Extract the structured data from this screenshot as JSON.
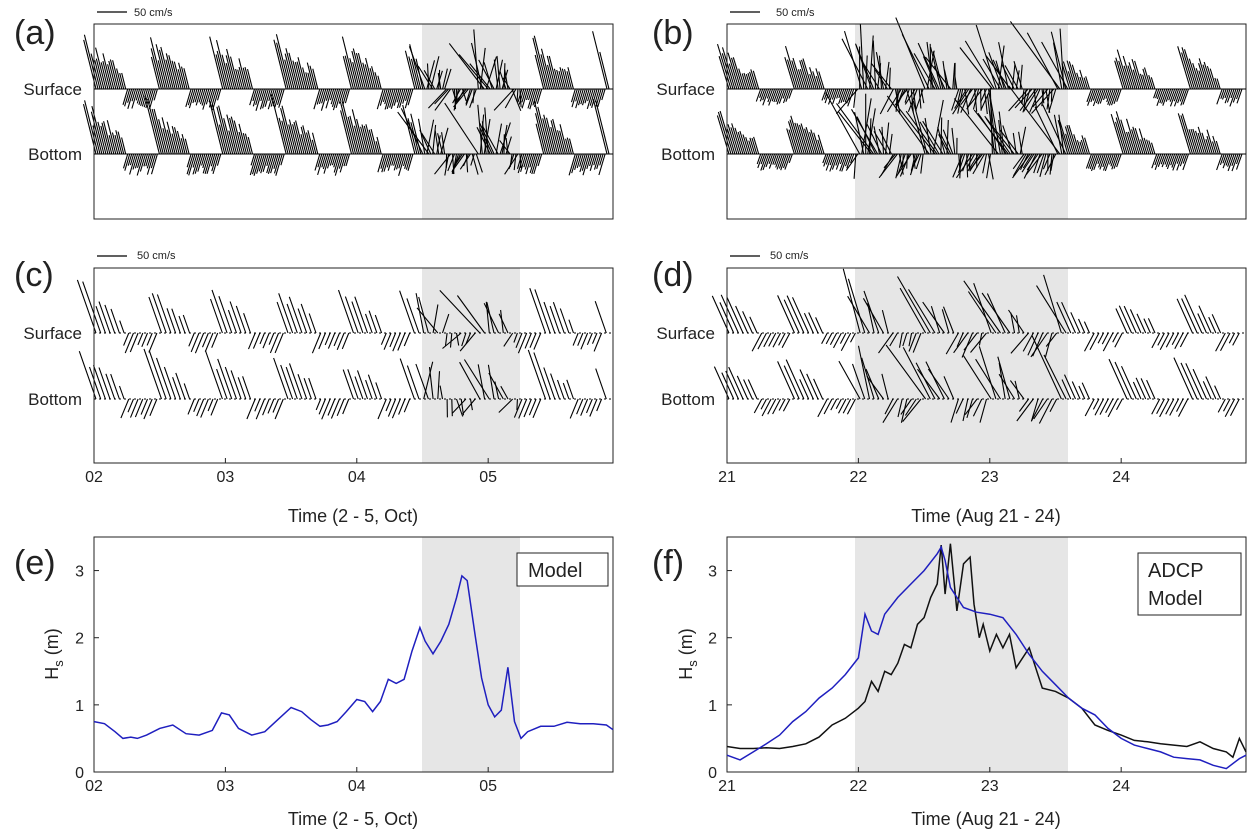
{
  "labels": {
    "surface": "Surface",
    "bottom": "Bottom",
    "scale": "50 cm/s",
    "xlabel_oct": "Time (2 - 5, Oct)",
    "xlabel_aug": "Time (Aug 21 - 24)",
    "ylabel_hs": "H",
    "ylabel_hs_sub": "s",
    "ylabel_unit": " (m)"
  },
  "panels": [
    "(a)",
    "(b)",
    "(c)",
    "(d)",
    "(e)",
    "(f)"
  ],
  "colors": {
    "model": "#1f1fbf",
    "adcp": "#111111",
    "shade": "#e6e6e6",
    "axis": "#222222"
  },
  "chart_data": [
    {
      "type": "stick-vector",
      "panel": "(a)",
      "source": "observed",
      "x_ticks": [
        "02",
        "03",
        "04",
        "05"
      ],
      "x_range": [
        2.0,
        5.95
      ],
      "shaded": [
        4.5,
        5.25
      ],
      "levels": [
        "Surface",
        "Bottom"
      ],
      "scale_label": "50 cm/s"
    },
    {
      "type": "stick-vector",
      "panel": "(b)",
      "source": "observed",
      "x_ticks": [
        "21",
        "22",
        "23",
        "24"
      ],
      "x_range": [
        21.0,
        24.95
      ],
      "shaded": [
        21.98,
        23.6
      ],
      "levels": [
        "Surface",
        "Bottom"
      ],
      "scale_label": "50 cm/s"
    },
    {
      "type": "stick-vector",
      "panel": "(c)",
      "source": "model",
      "x_ticks": [
        "02",
        "03",
        "04",
        "05"
      ],
      "x_range": [
        2.0,
        5.95
      ],
      "shaded": [
        4.5,
        5.25
      ],
      "levels": [
        "Surface",
        "Bottom"
      ],
      "scale_label": "50 cm/s",
      "xlabel": "Time (2 - 5, Oct)"
    },
    {
      "type": "stick-vector",
      "panel": "(d)",
      "source": "model",
      "x_ticks": [
        "21",
        "22",
        "23",
        "24"
      ],
      "x_range": [
        21.0,
        24.95
      ],
      "shaded": [
        21.98,
        23.6
      ],
      "levels": [
        "Surface",
        "Bottom"
      ],
      "scale_label": "50 cm/s",
      "xlabel": "Time (Aug 21 - 24)"
    },
    {
      "type": "line",
      "panel": "(e)",
      "xlabel": "Time (2 - 5, Oct)",
      "ylabel": "Hs (m)",
      "x_ticks": [
        "02",
        "03",
        "04",
        "05"
      ],
      "y_ticks": [
        0,
        1,
        2,
        3
      ],
      "xlim": [
        2.0,
        5.95
      ],
      "ylim": [
        0,
        3.5
      ],
      "shaded": [
        4.5,
        5.25
      ],
      "legend": "top-right",
      "series": [
        {
          "name": "Model",
          "x": [
            2.0,
            2.08,
            2.16,
            2.22,
            2.28,
            2.33,
            2.4,
            2.5,
            2.6,
            2.7,
            2.8,
            2.9,
            2.97,
            3.03,
            3.1,
            3.2,
            3.3,
            3.4,
            3.5,
            3.58,
            3.65,
            3.72,
            3.78,
            3.85,
            3.92,
            4.0,
            4.06,
            4.12,
            4.18,
            4.24,
            4.3,
            4.36,
            4.42,
            4.48,
            4.52,
            4.58,
            4.64,
            4.7,
            4.76,
            4.8,
            4.84,
            4.9,
            4.95,
            5.0,
            5.05,
            5.1,
            5.15,
            5.2,
            5.25,
            5.3,
            5.4,
            5.5,
            5.6,
            5.7,
            5.8,
            5.9,
            5.95
          ],
          "y": [
            0.75,
            0.72,
            0.6,
            0.5,
            0.52,
            0.5,
            0.55,
            0.65,
            0.7,
            0.57,
            0.55,
            0.62,
            0.88,
            0.85,
            0.65,
            0.55,
            0.6,
            0.78,
            0.96,
            0.9,
            0.78,
            0.68,
            0.7,
            0.75,
            0.9,
            1.08,
            1.05,
            0.9,
            1.05,
            1.38,
            1.32,
            1.38,
            1.8,
            2.15,
            1.95,
            1.76,
            1.95,
            2.2,
            2.6,
            2.92,
            2.85,
            2.05,
            1.4,
            1.0,
            0.82,
            0.92,
            1.56,
            0.75,
            0.5,
            0.6,
            0.68,
            0.68,
            0.74,
            0.72,
            0.72,
            0.7,
            0.63
          ]
        }
      ]
    },
    {
      "type": "line",
      "panel": "(f)",
      "xlabel": "Time (Aug 21 - 24)",
      "ylabel": "Hs (m)",
      "x_ticks": [
        "21",
        "22",
        "23",
        "24"
      ],
      "y_ticks": [
        0,
        1,
        2,
        3
      ],
      "xlim": [
        21.0,
        24.95
      ],
      "ylim": [
        0,
        3.5
      ],
      "shaded": [
        21.98,
        23.6
      ],
      "legend": "top-right",
      "series": [
        {
          "name": "ADCP",
          "x": [
            21.0,
            21.1,
            21.2,
            21.3,
            21.4,
            21.5,
            21.6,
            21.7,
            21.8,
            21.9,
            22.0,
            22.05,
            22.1,
            22.15,
            22.2,
            22.25,
            22.3,
            22.35,
            22.4,
            22.45,
            22.5,
            22.55,
            22.6,
            22.63,
            22.66,
            22.7,
            22.75,
            22.8,
            22.85,
            22.88,
            22.92,
            22.95,
            23.0,
            23.05,
            23.1,
            23.15,
            23.2,
            23.3,
            23.4,
            23.5,
            23.6,
            23.7,
            23.8,
            23.9,
            24.0,
            24.1,
            24.2,
            24.3,
            24.4,
            24.5,
            24.6,
            24.7,
            24.8,
            24.85,
            24.9,
            24.95
          ],
          "y": [
            0.38,
            0.35,
            0.35,
            0.36,
            0.35,
            0.38,
            0.42,
            0.52,
            0.7,
            0.8,
            0.95,
            1.05,
            1.35,
            1.2,
            1.5,
            1.45,
            1.62,
            1.9,
            1.85,
            2.2,
            2.3,
            2.6,
            2.8,
            3.38,
            2.65,
            3.4,
            2.4,
            3.1,
            3.2,
            2.5,
            2.0,
            2.2,
            1.8,
            2.05,
            1.85,
            2.05,
            1.55,
            1.85,
            1.25,
            1.2,
            1.1,
            0.95,
            0.7,
            0.62,
            0.55,
            0.47,
            0.45,
            0.42,
            0.4,
            0.38,
            0.45,
            0.35,
            0.3,
            0.22,
            0.5,
            0.3
          ]
        },
        {
          "name": "Model",
          "x": [
            21.0,
            21.1,
            21.2,
            21.3,
            21.4,
            21.5,
            21.6,
            21.7,
            21.8,
            21.9,
            22.0,
            22.05,
            22.1,
            22.15,
            22.2,
            22.3,
            22.4,
            22.5,
            22.6,
            22.63,
            22.66,
            22.7,
            22.8,
            22.9,
            23.0,
            23.1,
            23.2,
            23.3,
            23.4,
            23.5,
            23.6,
            23.7,
            23.8,
            23.9,
            24.0,
            24.1,
            24.2,
            24.3,
            24.4,
            24.5,
            24.6,
            24.7,
            24.8,
            24.9,
            24.95
          ],
          "y": [
            0.25,
            0.18,
            0.3,
            0.42,
            0.55,
            0.75,
            0.9,
            1.1,
            1.25,
            1.45,
            1.7,
            2.35,
            2.1,
            2.05,
            2.35,
            2.6,
            2.8,
            3.0,
            3.25,
            3.35,
            3.15,
            2.75,
            2.45,
            2.38,
            2.35,
            2.3,
            2.05,
            1.75,
            1.5,
            1.3,
            1.1,
            0.95,
            0.85,
            0.65,
            0.5,
            0.4,
            0.35,
            0.3,
            0.22,
            0.2,
            0.18,
            0.1,
            0.05,
            0.2,
            0.25
          ]
        }
      ]
    }
  ]
}
